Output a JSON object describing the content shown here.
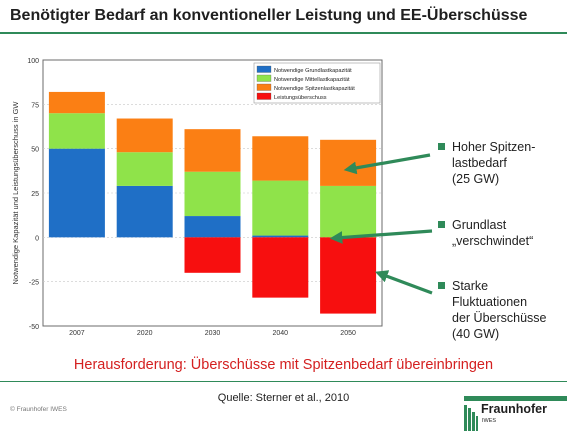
{
  "title": "Benötigter Bedarf an konventioneller Leistung und EE-Überschüsse",
  "colors": {
    "accent": "#2f8a59",
    "challenge": "#d42020"
  },
  "chart_data": {
    "type": "bar",
    "stacked": true,
    "categories": [
      "2007",
      "2020",
      "2030",
      "2040",
      "2050"
    ],
    "series": [
      {
        "name": "Notwendige Grundlastkapazität",
        "color": "#1f6fc6",
        "values": [
          50,
          29,
          12,
          1,
          0
        ]
      },
      {
        "name": "Notwendige Mittellastkapazität",
        "color": "#8fe34a",
        "values": [
          20,
          19,
          25,
          31,
          29
        ]
      },
      {
        "name": "Notwendige Spitzenlastkapazität",
        "color": "#fb7f14",
        "values": [
          12,
          19,
          24,
          25,
          26
        ]
      },
      {
        "name": "Leistungsüberschuss",
        "color": "#f70f0f",
        "values": [
          0,
          0,
          -20,
          -34,
          -43
        ]
      }
    ],
    "ylabel": "Notwendige Kapazität und Leistungsüberschuss in GW",
    "ylim": [
      -50,
      100
    ],
    "yticks": [
      -50,
      -25,
      0,
      25,
      50,
      75,
      100
    ],
    "ytick_labels": [
      "-50",
      "-25",
      "0",
      "25",
      "50",
      "75",
      "100"
    ],
    "legend_position": "top-right"
  },
  "annotations": [
    {
      "lines": [
        "Hoher Spitzen-",
        "lastbedarf",
        "(25 GW)"
      ]
    },
    {
      "lines": [
        "Grundlast",
        "„verschwindet“"
      ]
    },
    {
      "lines": [
        "Starke",
        "Fluktuationen",
        "der Überschüsse",
        "(40 GW)"
      ]
    }
  ],
  "challenge": "Herausforderung: Überschüsse mit Spitzenbedarf übereinbringen",
  "source": "Quelle: Sterner et al., 2010",
  "copyright": "© Fraunhofer IWES",
  "logo": {
    "brand": "Fraunhofer",
    "sub": "IWES"
  }
}
